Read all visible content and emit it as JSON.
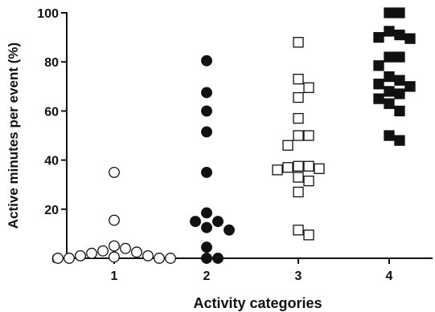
{
  "chart_data": {
    "type": "scatter",
    "xlabel": "Activity categories",
    "ylabel": "Active minutes per event (%)",
    "categories": [
      "1",
      "2",
      "3",
      "4"
    ],
    "ylim": [
      0,
      100
    ],
    "yticks": [
      "0",
      "20",
      "40",
      "60",
      "80",
      "100"
    ],
    "grid": false,
    "series": [
      {
        "category": "1",
        "marker": "circle-open",
        "color": "#111111",
        "values": [
          35,
          15.5,
          5,
          4,
          3,
          2.5,
          2,
          1,
          1,
          0.5,
          0,
          0,
          0,
          0
        ]
      },
      {
        "category": "2",
        "marker": "circle-filled",
        "color": "#111111",
        "values": [
          80.5,
          67.5,
          60,
          51.5,
          35,
          18.5,
          15,
          15,
          12.5,
          11.5,
          4.5,
          0,
          0
        ]
      },
      {
        "category": "3",
        "marker": "square-open",
        "color": "#111111",
        "values": [
          88,
          73,
          69.5,
          65.5,
          57,
          50,
          50,
          46,
          37.5,
          37.5,
          37,
          36.5,
          36,
          33,
          31.5,
          27,
          11.5,
          9.5
        ]
      },
      {
        "category": "4",
        "marker": "square-filled",
        "color": "#111111",
        "values": [
          100,
          100,
          92.5,
          91,
          90,
          89.5,
          82,
          82,
          78.5,
          74,
          72.5,
          71,
          70,
          68,
          67,
          65,
          63,
          60,
          50,
          48
        ]
      }
    ]
  }
}
